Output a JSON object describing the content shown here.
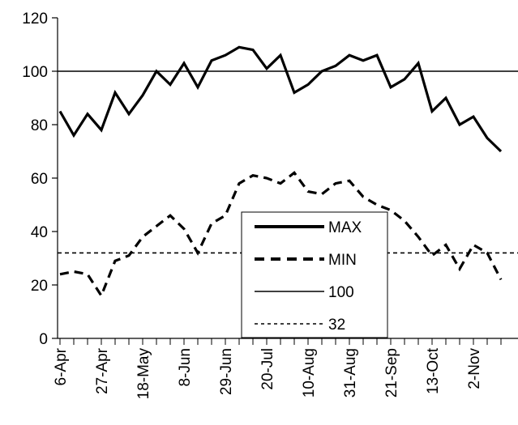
{
  "chart_data": {
    "type": "line",
    "title": "",
    "xlabel": "",
    "ylabel": "",
    "ylim": [
      0,
      120
    ],
    "yticks": [
      0,
      20,
      40,
      60,
      80,
      100,
      120
    ],
    "x_tick_labels": [
      "6-Apr",
      "27-Apr",
      "18-May",
      "8-Jun",
      "29-Jun",
      "20-Jul",
      "10-Aug",
      "31-Aug",
      "21-Sep",
      "13-Oct",
      "2-Nov"
    ],
    "x": [
      "6-Apr",
      "13-Apr",
      "20-Apr",
      "27-Apr",
      "4-May",
      "11-May",
      "18-May",
      "25-May",
      "1-Jun",
      "8-Jun",
      "15-Jun",
      "22-Jun",
      "29-Jun",
      "6-Jul",
      "13-Jul",
      "20-Jul",
      "27-Jul",
      "3-Aug",
      "10-Aug",
      "17-Aug",
      "24-Aug",
      "31-Aug",
      "7-Sep",
      "14-Sep",
      "21-Sep",
      "28-Sep",
      "5-Oct",
      "13-Oct",
      "20-Oct",
      "27-Oct",
      "2-Nov",
      "9-Nov",
      "16-Nov"
    ],
    "series": [
      {
        "name": "MAX",
        "style": "solid-thick",
        "values": [
          85,
          76,
          84,
          78,
          92,
          84,
          91,
          100,
          95,
          103,
          94,
          104,
          106,
          109,
          108,
          101,
          106,
          92,
          95,
          100,
          102,
          106,
          104,
          106,
          94,
          97,
          103,
          85,
          90,
          80,
          83,
          75,
          70
        ]
      },
      {
        "name": "MIN",
        "style": "dashed-thick",
        "values": [
          24,
          25,
          24,
          16,
          29,
          31,
          38,
          42,
          46,
          41,
          32,
          43,
          46,
          58,
          61,
          60,
          58,
          62,
          55,
          54,
          58,
          59,
          53,
          50,
          48,
          44,
          38,
          31,
          35,
          26,
          35,
          32,
          22
        ]
      },
      {
        "name": "100",
        "style": "solid-thin",
        "constant": 100
      },
      {
        "name": "32",
        "style": "dotted-thin",
        "constant": 32
      }
    ],
    "grid": false,
    "legend_placement": "center-bottom"
  },
  "colors": {
    "line": "#000000",
    "background": "#ffffff"
  }
}
